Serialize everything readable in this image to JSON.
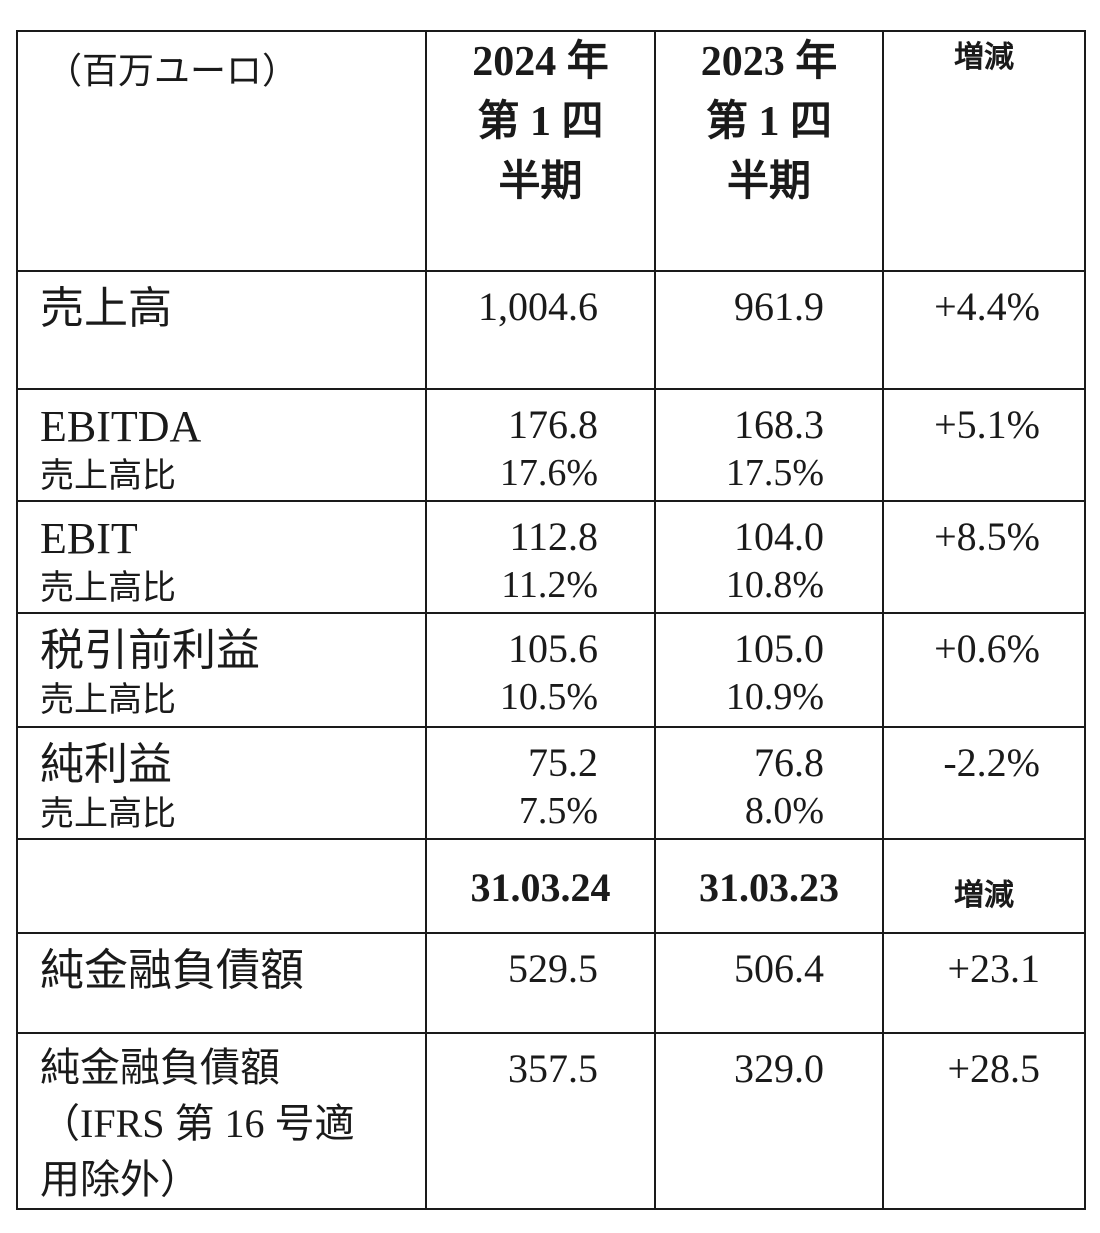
{
  "header": {
    "unit": "（百万ユーロ）",
    "col_2024": [
      "2024 年",
      "第 1 四",
      "半期"
    ],
    "col_2023": [
      "2023 年",
      "第 1 四",
      "半期"
    ],
    "col_change": "増減"
  },
  "rows": [
    {
      "label": "売上高",
      "v2024": "1,004.6",
      "v2023": "961.9",
      "change": "+4.4%"
    },
    {
      "label": "EBITDA",
      "sub": "売上高比",
      "v2024": "176.8",
      "v2024_sub": "17.6%",
      "v2023": "168.3",
      "v2023_sub": "17.5%",
      "change": "+5.1%"
    },
    {
      "label": "EBIT",
      "sub": "売上高比",
      "v2024": "112.8",
      "v2024_sub": "11.2%",
      "v2023": "104.0",
      "v2023_sub": "10.8%",
      "change": "+8.5%"
    },
    {
      "label": "税引前利益",
      "sub": "売上高比",
      "v2024": "105.6",
      "v2024_sub": "10.5%",
      "v2023": "105.0",
      "v2023_sub": "10.9%",
      "change": "+0.6%"
    },
    {
      "label": "純利益",
      "sub": "売上高比",
      "v2024": "75.2",
      "v2024_sub": "7.5%",
      "v2023": "76.8",
      "v2023_sub": "8.0%",
      "change": "-2.2%"
    }
  ],
  "header2": {
    "date_2024": "31.03.24",
    "date_2023": "31.03.23",
    "change": "増減"
  },
  "debt_rows": [
    {
      "label": "純金融負債額",
      "v2024": "529.5",
      "v2023": "506.4",
      "change": "+23.1"
    },
    {
      "label_lines": [
        "純金融負債額",
        "（IFRS 第 16 号適",
        "用除外）"
      ],
      "v2024": "357.5",
      "v2023": "329.0",
      "change": "+28.5"
    }
  ]
}
